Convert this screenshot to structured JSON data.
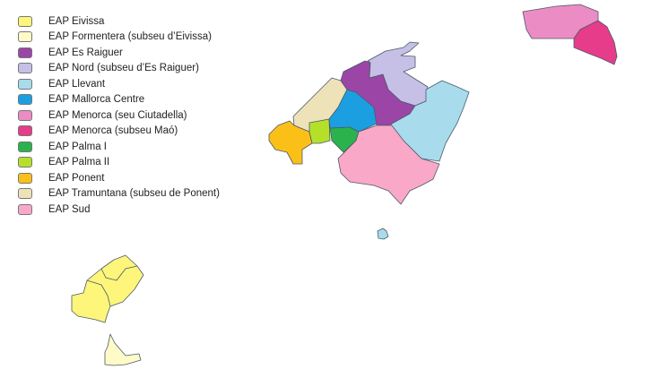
{
  "legend": [
    {
      "label": "EAP Eivissa",
      "color": "#fdf67a"
    },
    {
      "label": "EAP Formentera (subseu d’Eivissa)",
      "color": "#fefbc8"
    },
    {
      "label": "EAP Es Raiguer",
      "color": "#9b45a6"
    },
    {
      "label": "EAP Nord (subseu d’Es Raiguer)",
      "color": "#c6bfe6"
    },
    {
      "label": "EAP Llevant",
      "color": "#a8dcec"
    },
    {
      "label": "EAP Mallorca Centre",
      "color": "#1b9fe0"
    },
    {
      "label": "EAP Menorca (seu Ciutadella)",
      "color": "#ec8cc4"
    },
    {
      "label": "EAP Menorca (subseu Maó)",
      "color": "#e63c8a"
    },
    {
      "label": "EAP Palma I",
      "color": "#2bb24c"
    },
    {
      "label": "EAP Palma II",
      "color": "#b5e02a"
    },
    {
      "label": "EAP Ponent",
      "color": "#fbc018"
    },
    {
      "label": "EAP Tramuntana (subseu de Ponent)",
      "color": "#ede2b8"
    },
    {
      "label": "EAP Sud",
      "color": "#f9a8c8"
    }
  ]
}
